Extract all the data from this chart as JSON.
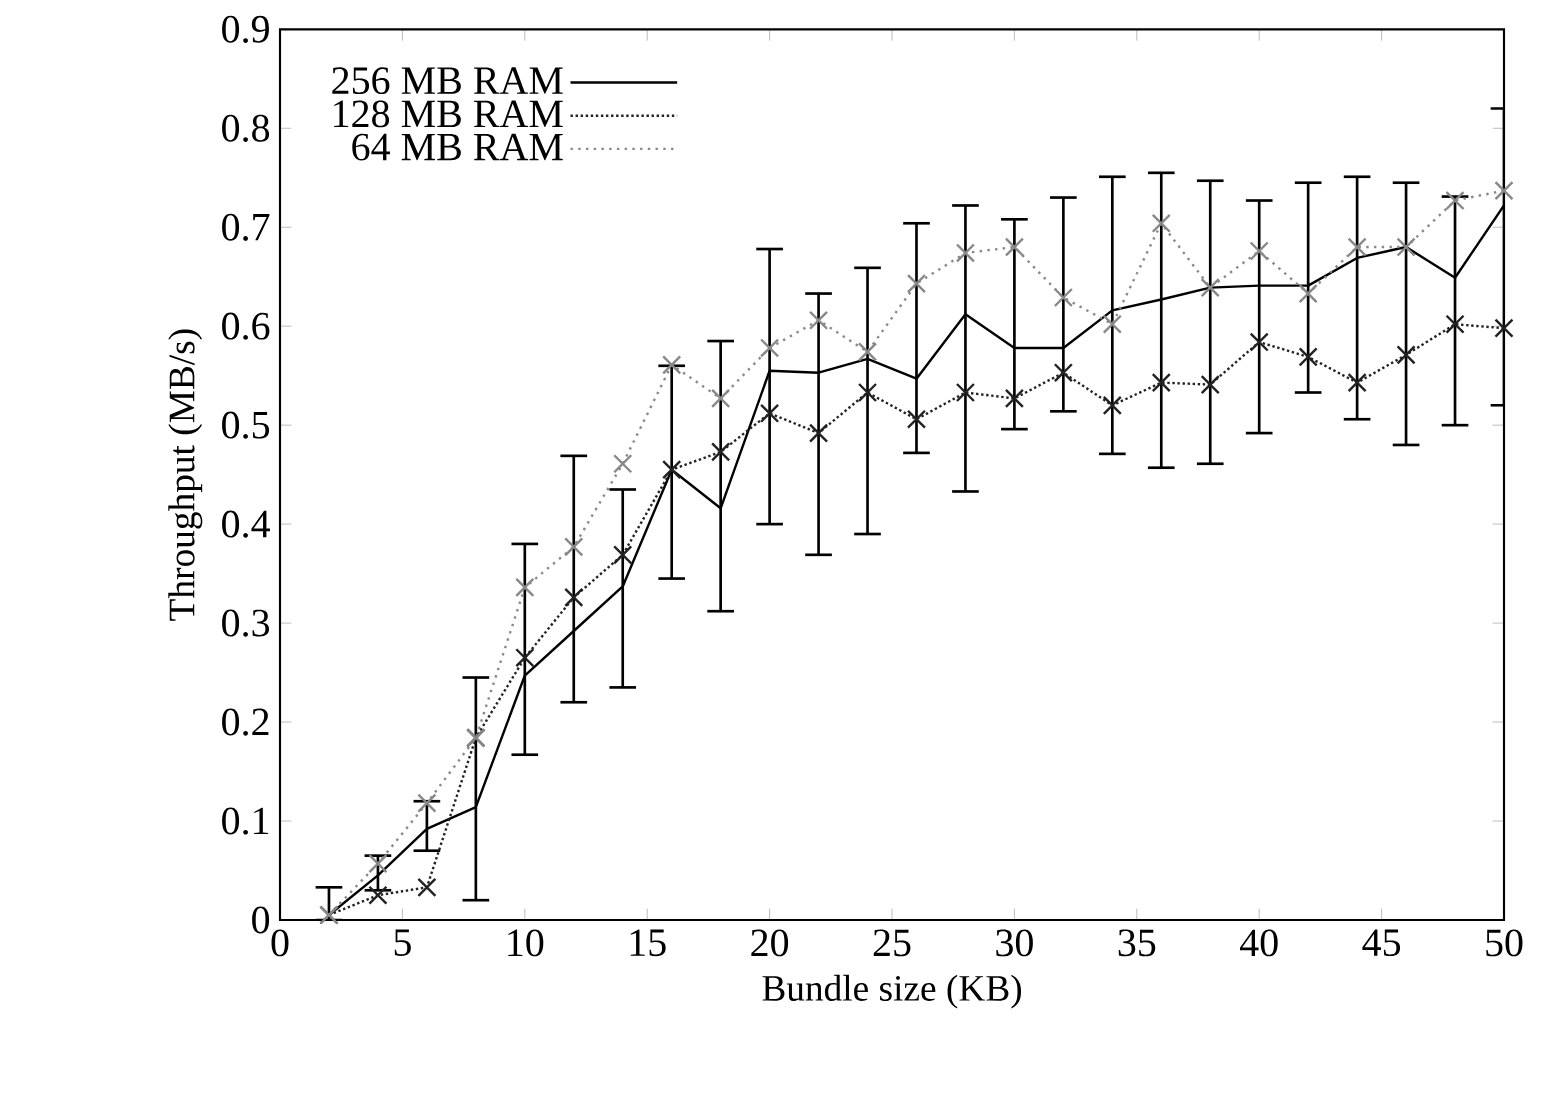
{
  "chart_data": {
    "type": "line",
    "xlabel": "Bundle size (KB)",
    "ylabel": "Throughput (MB/s)",
    "x": [
      2,
      4,
      6,
      8,
      10,
      12,
      14,
      16,
      18,
      20,
      22,
      24,
      26,
      28,
      30,
      32,
      34,
      36,
      38,
      40,
      42,
      44,
      46,
      48,
      50
    ],
    "xlim": [
      0,
      50
    ],
    "xticks": [
      0,
      5,
      10,
      15,
      20,
      25,
      30,
      35,
      40,
      45,
      50
    ],
    "ylim": [
      0,
      0.9
    ],
    "yticks": [
      0,
      0.1,
      0.2,
      0.3,
      0.4,
      0.5,
      0.6,
      0.7,
      0.8,
      0.9
    ],
    "legend": "top left",
    "grid": false,
    "series": [
      {
        "name": "256 MB RAM",
        "color": "#000000",
        "line_style": "solid",
        "marker": "none",
        "values": [
          0.005,
          0.045,
          0.092,
          0.114,
          0.247,
          0.292,
          0.337,
          0.455,
          0.416,
          0.555,
          0.553,
          0.567,
          0.547,
          0.612,
          0.578,
          0.578,
          0.616,
          0.627,
          0.639,
          0.641,
          0.641,
          0.669,
          0.68,
          0.649,
          0.722
        ],
        "errors": [
          [
            0,
            0.033
          ],
          [
            0.03,
            0.065
          ],
          [
            0.07,
            0.12
          ],
          [
            0.02,
            0.245
          ],
          [
            0.167,
            0.38
          ],
          [
            0.22,
            0.469
          ],
          [
            0.235,
            0.435
          ],
          [
            0.345,
            0.56
          ],
          [
            0.312,
            0.585
          ],
          [
            0.4,
            0.678
          ],
          [
            0.369,
            0.633
          ],
          [
            0.39,
            0.659
          ],
          [
            0.472,
            0.704
          ],
          [
            0.433,
            0.722
          ],
          [
            0.496,
            0.708
          ],
          [
            0.514,
            0.73
          ],
          [
            0.471,
            0.751
          ],
          [
            0.457,
            0.755
          ],
          [
            0.461,
            0.747
          ],
          [
            0.492,
            0.727
          ],
          [
            0.533,
            0.745
          ],
          [
            0.506,
            0.751
          ],
          [
            0.48,
            0.745
          ],
          [
            0.5,
            0.731
          ],
          [
            0.52,
            0.82
          ]
        ]
      },
      {
        "name": "128 MB RAM",
        "color": "#222222",
        "line_style": "dashed",
        "marker": "cross",
        "values": [
          0.005,
          0.025,
          0.033,
          0.184,
          0.265,
          0.326,
          0.369,
          0.455,
          0.473,
          0.512,
          0.492,
          0.533,
          0.506,
          0.533,
          0.527,
          0.553,
          0.52,
          0.543,
          0.541,
          0.584,
          0.569,
          0.543,
          0.571,
          0.602,
          0.598
        ]
      },
      {
        "name": "64 MB RAM",
        "color": "#888888",
        "line_style": "dotted",
        "marker": "cross",
        "values": [
          0.005,
          0.057,
          0.118,
          0.184,
          0.336,
          0.377,
          0.461,
          0.561,
          0.527,
          0.578,
          0.606,
          0.574,
          0.643,
          0.674,
          0.68,
          0.629,
          0.602,
          0.704,
          0.639,
          0.676,
          0.633,
          0.68,
          0.68,
          0.727,
          0.737
        ]
      }
    ]
  }
}
